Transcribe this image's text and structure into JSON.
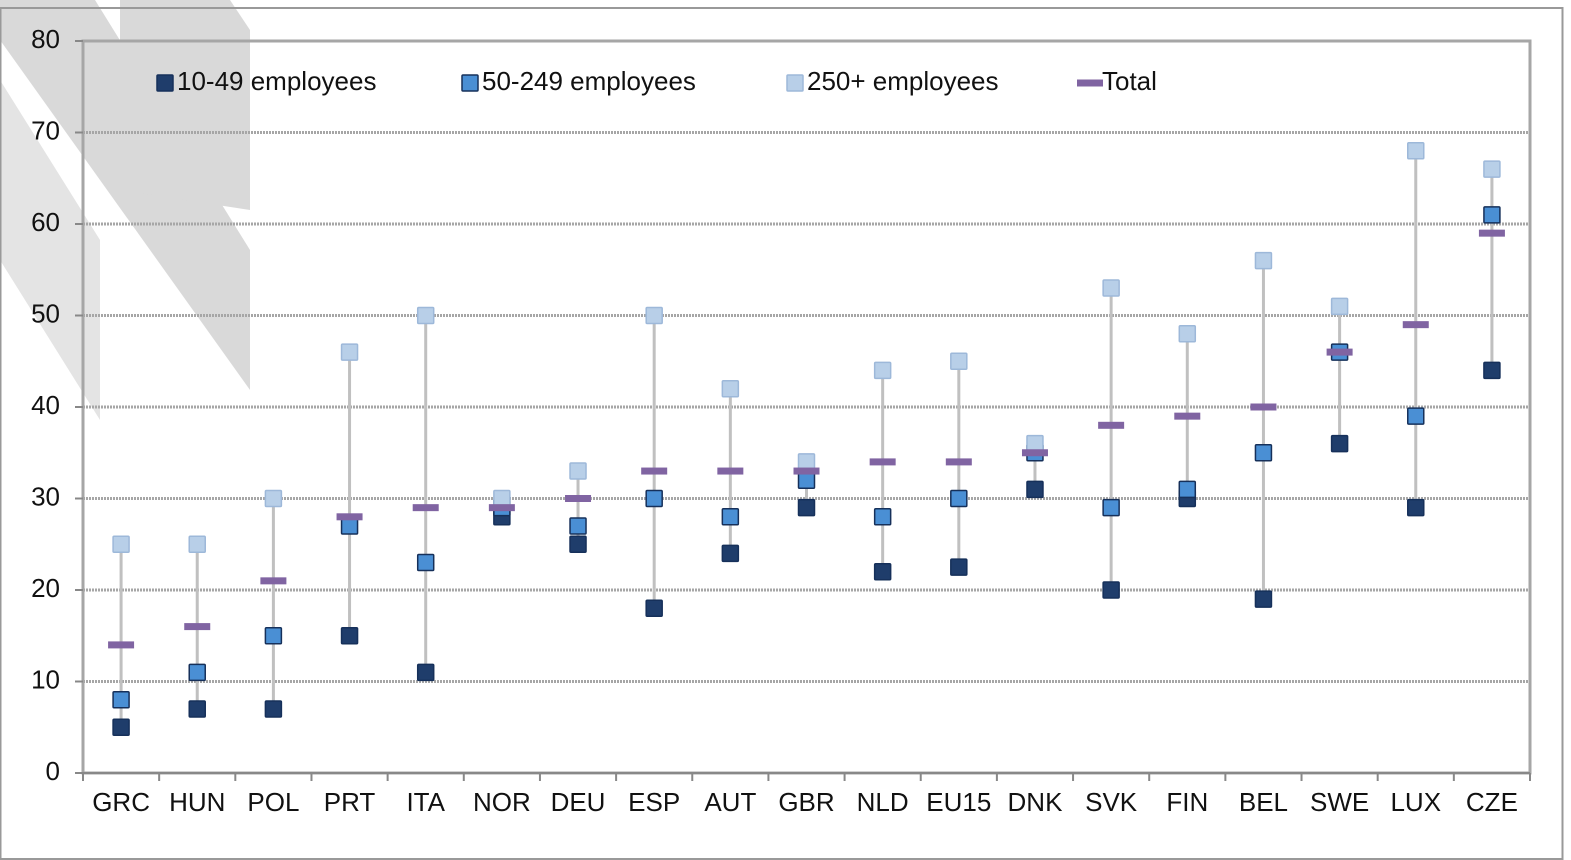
{
  "chart_data": {
    "type": "dot",
    "categories": [
      "GRC",
      "HUN",
      "POL",
      "PRT",
      "ITA",
      "NOR",
      "DEU",
      "ESP",
      "AUT",
      "GBR",
      "NLD",
      "EU15",
      "DNK",
      "SVK",
      "FIN",
      "BEL",
      "SWE",
      "LUX",
      "CZE"
    ],
    "series": [
      {
        "name": "10-49 employees",
        "color": "#1f3d6b",
        "marker": "square",
        "values": [
          5,
          7,
          7,
          15,
          11,
          28,
          25,
          18,
          24,
          29,
          22,
          22.5,
          31,
          20,
          30,
          19,
          36,
          29,
          44
        ]
      },
      {
        "name": "50-249 employees",
        "color": "#4a8fd4",
        "marker": "square",
        "values": [
          8,
          11,
          15,
          27,
          23,
          29,
          27,
          30,
          28,
          32,
          28,
          30,
          35,
          29,
          31,
          35,
          46,
          39,
          61
        ]
      },
      {
        "name": "250+ employees",
        "color": "#b8cfe8",
        "marker": "square",
        "values": [
          25,
          25,
          30,
          46,
          50,
          30,
          33,
          50,
          42,
          34,
          44,
          45,
          36,
          53,
          48,
          56,
          51,
          68,
          66
        ]
      },
      {
        "name": "Total",
        "color": "#8064a2",
        "marker": "dash",
        "values": [
          14,
          16,
          21,
          28,
          29,
          29,
          30,
          33,
          33,
          33,
          34,
          34,
          35,
          38,
          39,
          40,
          46,
          49,
          59
        ]
      }
    ],
    "ylim": [
      0,
      80
    ],
    "yticks": [
      0,
      10,
      20,
      30,
      40,
      50,
      60,
      70,
      80
    ],
    "grid": true,
    "legend": "top"
  }
}
